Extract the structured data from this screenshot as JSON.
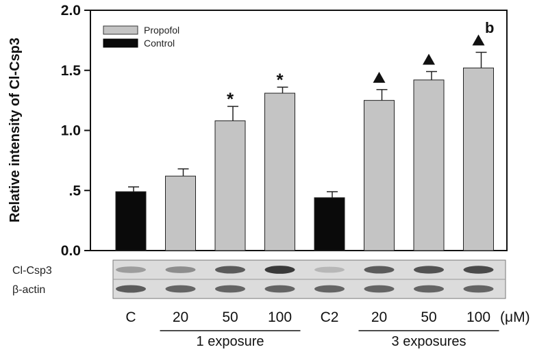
{
  "chart_data": {
    "type": "bar",
    "panel_letter": "b",
    "ylabel": "Relative intensity of Cl-Csp3",
    "ylim": [
      0,
      2.0
    ],
    "yticks": [
      {
        "value": 0.0,
        "label": "0.0"
      },
      {
        "value": 0.5,
        "label": ".5"
      },
      {
        "value": 1.0,
        "label": "1.0"
      },
      {
        "value": 1.5,
        "label": "1.5"
      },
      {
        "value": 2.0,
        "label": "2.0"
      }
    ],
    "legend_position": "top-left",
    "legend": [
      {
        "name": "Propofol",
        "color": "#c4c4c4"
      },
      {
        "name": "Control",
        "color": "#0a0a0a"
      }
    ],
    "categories": [
      "C",
      "20",
      "50",
      "100",
      "C2",
      "20",
      "50",
      "100"
    ],
    "unit_label": "(μM)",
    "bars": [
      {
        "category": "C",
        "value": 0.49,
        "error": 0.04,
        "series": "Control",
        "marker": ""
      },
      {
        "category": "20",
        "value": 0.62,
        "error": 0.06,
        "series": "Propofol",
        "marker": ""
      },
      {
        "category": "50",
        "value": 1.08,
        "error": 0.12,
        "series": "Propofol",
        "marker": "*"
      },
      {
        "category": "100",
        "value": 1.31,
        "error": 0.05,
        "series": "Propofol",
        "marker": "*"
      },
      {
        "category": "C2",
        "value": 0.44,
        "error": 0.05,
        "series": "Control",
        "marker": ""
      },
      {
        "category": "20",
        "value": 1.25,
        "error": 0.09,
        "series": "Propofol",
        "marker": "▲"
      },
      {
        "category": "50",
        "value": 1.42,
        "error": 0.07,
        "series": "Propofol",
        "marker": "▲"
      },
      {
        "category": "100",
        "value": 1.52,
        "error": 0.13,
        "series": "Propofol",
        "marker": "▲"
      }
    ],
    "groups": [
      {
        "label": "1 exposure",
        "from": 1,
        "to": 3
      },
      {
        "label": "3 exposures",
        "from": 5,
        "to": 7
      }
    ],
    "blot_rows": [
      {
        "label": "Cl-Csp3",
        "intensities": [
          0.35,
          0.45,
          0.75,
          0.95,
          0.2,
          0.75,
          0.8,
          0.85
        ]
      },
      {
        "label": "β-actin",
        "intensities": [
          0.75,
          0.7,
          0.7,
          0.7,
          0.7,
          0.7,
          0.7,
          0.7
        ]
      }
    ],
    "colors": {
      "propofol": "#c4c4c4",
      "control": "#0a0a0a",
      "axis": "#111111"
    }
  }
}
